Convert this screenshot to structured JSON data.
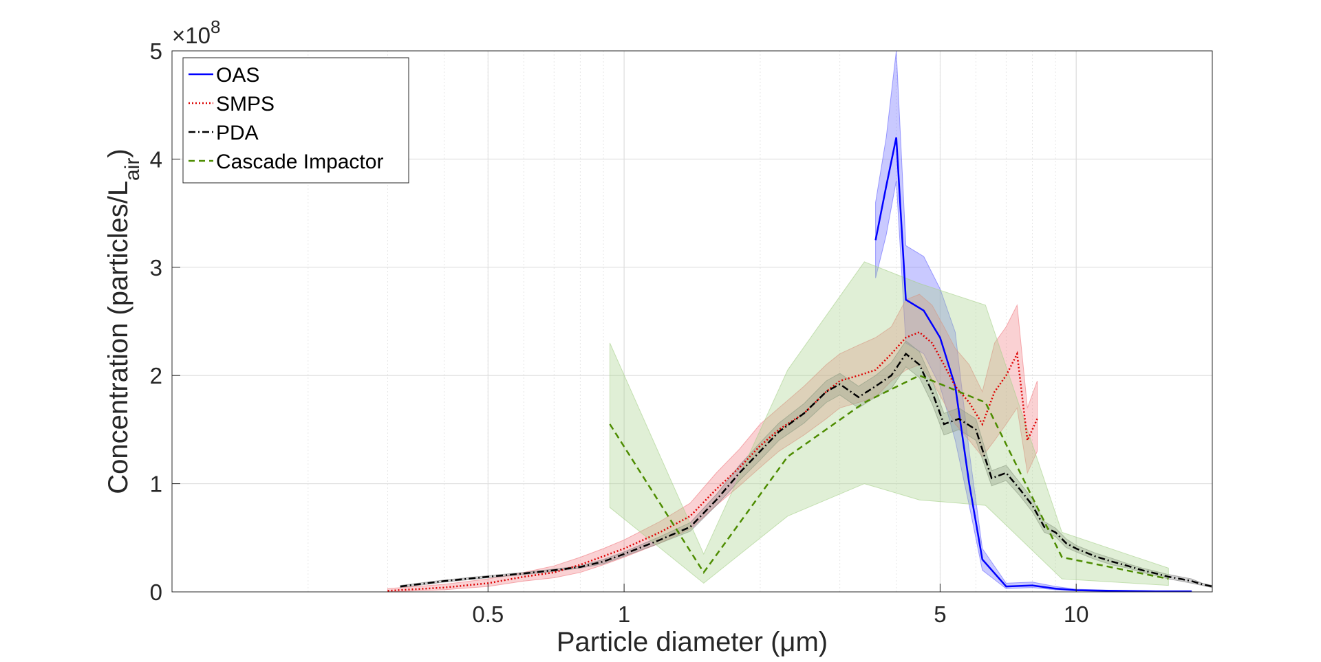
{
  "chart_data": {
    "type": "line",
    "xlabel": "Particle diameter (μm)",
    "ylabel": "Concentration (particles/L",
    "ylabel_sub": "air",
    "ylabel_close": ")",
    "exponent_label": "×10",
    "exponent_power": "8",
    "x_scale": "log",
    "xlim": [
      0.1,
      20
    ],
    "ylim": [
      0,
      5
    ],
    "y_multiplier": 100000000,
    "x_ticks": [
      {
        "value": 0.5,
        "label": "0.5"
      },
      {
        "value": 1,
        "label": "1"
      },
      {
        "value": 5,
        "label": "5"
      },
      {
        "value": 10,
        "label": "10"
      }
    ],
    "y_ticks": [
      {
        "value": 0,
        "label": "0"
      },
      {
        "value": 1,
        "label": "1"
      },
      {
        "value": 2,
        "label": "2"
      },
      {
        "value": 3,
        "label": "3"
      },
      {
        "value": 4,
        "label": "4"
      },
      {
        "value": 5,
        "label": "5"
      }
    ],
    "grid": true,
    "legend_position": "top-left",
    "series": [
      {
        "name": "OAS",
        "color": "#0000ff",
        "band_color": "#6464ff",
        "style": "solid",
        "x": [
          3.6,
          3.8,
          4.0,
          4.2,
          4.6,
          5.0,
          5.4,
          5.8,
          6.2,
          7.0,
          8.0,
          9.0,
          10,
          12,
          15,
          18
        ],
        "y": [
          3.25,
          3.75,
          4.2,
          2.7,
          2.6,
          2.35,
          1.9,
          1.0,
          0.3,
          0.05,
          0.06,
          0.03,
          0.015,
          0.01,
          0.005,
          0.005
        ],
        "lower": [
          2.9,
          3.3,
          3.8,
          2.3,
          2.2,
          1.9,
          1.4,
          0.8,
          0.2,
          0.03,
          0.04,
          0.02,
          0.01,
          0.005,
          0.002,
          0.002
        ],
        "upper": [
          3.6,
          4.2,
          5.0,
          3.2,
          3.1,
          2.8,
          2.4,
          1.3,
          0.4,
          0.08,
          0.09,
          0.05,
          0.025,
          0.015,
          0.01,
          0.01
        ]
      },
      {
        "name": "SMPS",
        "color": "#dd0000",
        "band_color": "#f07a80",
        "style": "dotted",
        "x": [
          0.3,
          0.4,
          0.5,
          0.6,
          0.7,
          0.8,
          0.9,
          1.0,
          1.2,
          1.4,
          1.6,
          1.8,
          2.0,
          2.2,
          2.5,
          2.8,
          3.0,
          3.3,
          3.6,
          3.9,
          4.2,
          4.5,
          4.8,
          5.1,
          5.4,
          5.8,
          6.2,
          6.6,
          7.0,
          7.4,
          7.8,
          8.2
        ],
        "y": [
          0.01,
          0.04,
          0.08,
          0.14,
          0.18,
          0.25,
          0.33,
          0.4,
          0.55,
          0.7,
          0.95,
          1.15,
          1.35,
          1.5,
          1.65,
          1.85,
          1.95,
          2.0,
          2.05,
          2.2,
          2.35,
          2.4,
          2.3,
          2.1,
          1.9,
          1.75,
          1.55,
          1.85,
          2.0,
          2.2,
          1.4,
          1.6
        ],
        "lower": [
          0.0,
          0.02,
          0.05,
          0.1,
          0.13,
          0.18,
          0.25,
          0.32,
          0.45,
          0.58,
          0.8,
          0.98,
          1.15,
          1.3,
          1.45,
          1.6,
          1.7,
          1.75,
          1.8,
          1.95,
          2.05,
          2.1,
          1.95,
          1.75,
          1.55,
          1.4,
          1.25,
          1.4,
          1.55,
          1.7,
          1.1,
          1.3
        ],
        "upper": [
          0.03,
          0.07,
          0.12,
          0.18,
          0.24,
          0.32,
          0.4,
          0.48,
          0.65,
          0.82,
          1.1,
          1.32,
          1.55,
          1.7,
          1.9,
          2.1,
          2.2,
          2.28,
          2.35,
          2.45,
          2.7,
          2.75,
          2.65,
          2.45,
          2.25,
          2.1,
          1.85,
          2.3,
          2.45,
          2.65,
          1.7,
          1.95
        ]
      },
      {
        "name": "PDA",
        "color": "#000000",
        "band_color": "#7f7f7f",
        "style": "dashdot",
        "x": [
          0.32,
          0.4,
          0.5,
          0.6,
          0.7,
          0.8,
          0.9,
          1.0,
          1.2,
          1.4,
          1.6,
          1.8,
          2.0,
          2.2,
          2.5,
          2.8,
          3.0,
          3.3,
          3.6,
          3.9,
          4.2,
          4.5,
          4.8,
          5.1,
          5.5,
          6.0,
          6.5,
          7.0,
          7.5,
          8.0,
          8.5,
          9.0,
          9.5,
          10,
          11,
          12,
          13,
          14,
          15,
          16,
          17,
          18,
          19,
          20
        ],
        "y": [
          0.05,
          0.1,
          0.14,
          0.17,
          0.2,
          0.23,
          0.28,
          0.35,
          0.48,
          0.6,
          0.85,
          1.1,
          1.3,
          1.48,
          1.65,
          1.85,
          1.92,
          1.8,
          1.9,
          2.0,
          2.2,
          2.1,
          1.85,
          1.55,
          1.6,
          1.5,
          1.05,
          1.1,
          0.95,
          0.8,
          0.6,
          0.55,
          0.45,
          0.4,
          0.33,
          0.28,
          0.24,
          0.2,
          0.17,
          0.14,
          0.12,
          0.1,
          0.07,
          0.05
        ],
        "lower": [
          0.04,
          0.09,
          0.13,
          0.16,
          0.19,
          0.22,
          0.26,
          0.33,
          0.45,
          0.56,
          0.8,
          1.03,
          1.22,
          1.4,
          1.56,
          1.75,
          1.82,
          1.7,
          1.8,
          1.88,
          2.08,
          1.98,
          1.74,
          1.45,
          1.5,
          1.4,
          0.98,
          1.03,
          0.89,
          0.74,
          0.55,
          0.51,
          0.41,
          0.37,
          0.3,
          0.25,
          0.22,
          0.18,
          0.15,
          0.12,
          0.1,
          0.08,
          0.06,
          0.04
        ],
        "upper": [
          0.06,
          0.11,
          0.15,
          0.18,
          0.21,
          0.24,
          0.3,
          0.37,
          0.51,
          0.64,
          0.9,
          1.17,
          1.38,
          1.56,
          1.74,
          1.95,
          2.02,
          1.9,
          2.0,
          2.12,
          2.32,
          2.22,
          1.96,
          1.65,
          1.7,
          1.6,
          1.12,
          1.17,
          1.01,
          0.86,
          0.65,
          0.59,
          0.49,
          0.43,
          0.36,
          0.31,
          0.26,
          0.22,
          0.19,
          0.16,
          0.14,
          0.12,
          0.08,
          0.06
        ]
      },
      {
        "name": "Cascade Impactor",
        "color": "#4d8c00",
        "band_color": "#a6d08a",
        "style": "dashed",
        "x": [
          0.93,
          1.5,
          2.3,
          3.4,
          4.5,
          6.3,
          9.3,
          16
        ],
        "y": [
          1.55,
          0.18,
          1.25,
          1.75,
          2.0,
          1.75,
          0.32,
          0.12
        ],
        "lower": [
          0.78,
          0.08,
          0.7,
          1.0,
          0.85,
          0.8,
          0.12,
          0.06
        ],
        "upper": [
          2.3,
          0.35,
          2.05,
          3.05,
          2.85,
          2.65,
          0.55,
          0.22
        ]
      }
    ]
  }
}
